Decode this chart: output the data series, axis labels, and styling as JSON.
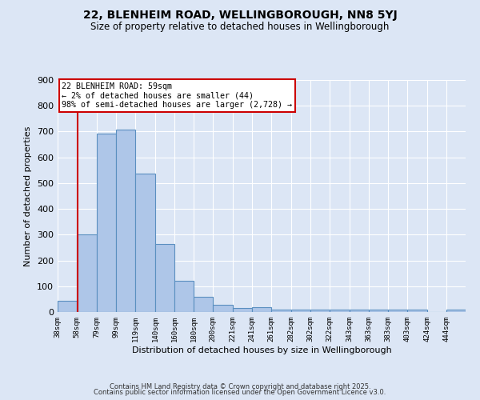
{
  "title_line1": "22, BLENHEIM ROAD, WELLINGBOROUGH, NN8 5YJ",
  "title_line2": "Size of property relative to detached houses in Wellingborough",
  "xlabel": "Distribution of detached houses by size in Wellingborough",
  "ylabel": "Number of detached properties",
  "bins": [
    "38sqm",
    "58sqm",
    "79sqm",
    "99sqm",
    "119sqm",
    "140sqm",
    "160sqm",
    "180sqm",
    "200sqm",
    "221sqm",
    "241sqm",
    "261sqm",
    "282sqm",
    "302sqm",
    "322sqm",
    "343sqm",
    "363sqm",
    "383sqm",
    "403sqm",
    "424sqm",
    "444sqm"
  ],
  "counts": [
    44,
    300,
    693,
    707,
    538,
    265,
    122,
    59,
    28,
    15,
    18,
    8,
    8,
    8,
    8,
    8,
    8,
    8,
    8,
    0,
    8
  ],
  "bin_edges": [
    38,
    58,
    79,
    99,
    119,
    140,
    160,
    180,
    200,
    221,
    241,
    261,
    282,
    302,
    322,
    343,
    363,
    383,
    403,
    424,
    444,
    464
  ],
  "bar_color": "#aec6e8",
  "bar_edge_color": "#5a8fc0",
  "red_line_x": 59,
  "annotation_title": "22 BLENHEIM ROAD: 59sqm",
  "annotation_line1": "← 2% of detached houses are smaller (44)",
  "annotation_line2": "98% of semi-detached houses are larger (2,728) →",
  "annotation_box_color": "#ffffff",
  "annotation_box_edge_color": "#cc0000",
  "red_line_color": "#cc0000",
  "background_color": "#dce6f5",
  "grid_color": "#ffffff",
  "footer1": "Contains HM Land Registry data © Crown copyright and database right 2025.",
  "footer2": "Contains public sector information licensed under the Open Government Licence v3.0.",
  "ylim": [
    0,
    900
  ],
  "yticks": [
    0,
    100,
    200,
    300,
    400,
    500,
    600,
    700,
    800,
    900
  ]
}
